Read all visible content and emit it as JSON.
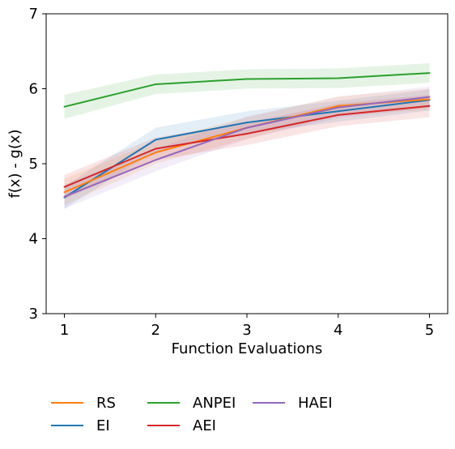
{
  "chart_data": {
    "type": "line",
    "title": "",
    "xlabel": "Function Evaluations",
    "ylabel": "f(x) - g(x)",
    "x": [
      1,
      2,
      3,
      4,
      5
    ],
    "xlim": [
      0.8,
      5.2
    ],
    "ylim": [
      3,
      7
    ],
    "xticks": [
      1,
      2,
      3,
      4,
      5
    ],
    "yticks": [
      3,
      4,
      5,
      6,
      7
    ],
    "grid": false,
    "legend_position": "bottom, below plot, 3 columns",
    "series": [
      {
        "name": "RS",
        "color": "#ff7f0e",
        "values": [
          4.62,
          5.15,
          5.48,
          5.77,
          5.86
        ],
        "lower": [
          4.45,
          5.0,
          5.33,
          5.64,
          5.72
        ],
        "upper": [
          4.8,
          5.3,
          5.62,
          5.9,
          6.0
        ]
      },
      {
        "name": "EI",
        "color": "#1f77b4",
        "values": [
          4.55,
          5.32,
          5.55,
          5.7,
          5.85
        ],
        "lower": [
          4.4,
          5.17,
          5.4,
          5.56,
          5.71
        ],
        "upper": [
          4.7,
          5.48,
          5.7,
          5.84,
          5.99
        ]
      },
      {
        "name": "ANPEI",
        "color": "#2ca02c",
        "values": [
          5.76,
          6.06,
          6.13,
          6.14,
          6.21
        ],
        "lower": [
          5.6,
          5.93,
          6.0,
          6.01,
          6.08
        ],
        "upper": [
          5.92,
          6.19,
          6.26,
          6.27,
          6.34
        ]
      },
      {
        "name": "AEI",
        "color": "#d62728",
        "values": [
          4.69,
          5.2,
          5.4,
          5.65,
          5.77
        ],
        "lower": [
          4.53,
          5.05,
          5.25,
          5.5,
          5.62
        ],
        "upper": [
          4.85,
          5.35,
          5.55,
          5.8,
          5.92
        ]
      },
      {
        "name": "HAEI",
        "color": "#9467bd",
        "values": [
          4.56,
          5.05,
          5.48,
          5.75,
          5.89
        ],
        "lower": [
          4.4,
          4.9,
          5.33,
          5.61,
          5.75
        ],
        "upper": [
          4.72,
          5.2,
          5.63,
          5.89,
          6.03
        ]
      }
    ],
    "draw_order": [
      "EI",
      "RS",
      "ANPEI",
      "AEI",
      "HAEI"
    ]
  }
}
